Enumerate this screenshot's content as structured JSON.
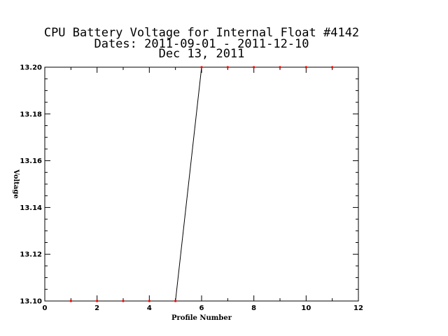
{
  "chart_data": {
    "type": "line",
    "title_lines": [
      "CPU Battery Voltage for Internal Float #4142",
      "Dates:  2011-09-01 -  2011-12-10",
      "Dec 13, 2011"
    ],
    "xlabel": "Profile Number",
    "ylabel": "Voltage",
    "xlim": [
      0,
      12
    ],
    "ylim": [
      13.1,
      13.2
    ],
    "x_ticks": [
      "0",
      "2",
      "4",
      "6",
      "8",
      "10",
      "12"
    ],
    "y_ticks": [
      "13.10",
      "13.12",
      "13.14",
      "13.16",
      "13.18",
      "13.20"
    ],
    "grid": false,
    "series": [
      {
        "x": [
          1,
          2,
          3,
          4,
          5,
          6,
          7,
          8,
          9,
          10,
          11
        ],
        "values": [
          13.1,
          13.1,
          13.1,
          13.1,
          13.1,
          13.2,
          13.2,
          13.2,
          13.2,
          13.2,
          13.2
        ],
        "line_color": "#000000",
        "marker_color": "#ff0000"
      }
    ]
  }
}
